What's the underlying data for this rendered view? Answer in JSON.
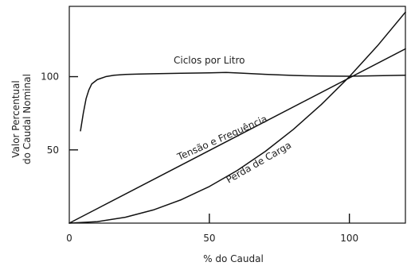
{
  "chart_data": {
    "type": "line",
    "xlabel": "% do Caudal",
    "ylabel_lines": [
      "Valor Percentual",
      "do Caudal Nominal"
    ],
    "xlim": [
      0,
      120
    ],
    "ylim": [
      0,
      148
    ],
    "x_ticks": [
      0,
      50,
      100
    ],
    "y_ticks": [
      50,
      100
    ],
    "x_tick_labels": [
      "0",
      "50",
      "100"
    ],
    "y_tick_labels": [
      "50",
      "100"
    ],
    "grid": false,
    "legend": "none",
    "series": [
      {
        "name": "Ciclos por Litro",
        "x": [
          4,
          5,
          6,
          7,
          8,
          10,
          13,
          16,
          20,
          25,
          30,
          40,
          50,
          56,
          60,
          70,
          80,
          90,
          100,
          110,
          120
        ],
        "y": [
          63,
          75,
          85,
          91,
          95,
          98,
          100,
          101,
          101.5,
          101.8,
          102,
          102.3,
          102.6,
          102.9,
          102.5,
          101.6,
          100.8,
          100.4,
          100.3,
          100.6,
          101
        ]
      },
      {
        "name": "Tensão e Frequência",
        "x": [
          0,
          120
        ],
        "y": [
          0,
          119
        ]
      },
      {
        "name": "Perda de Carga",
        "x": [
          0,
          10,
          20,
          30,
          40,
          50,
          60,
          70,
          80,
          90,
          100,
          110,
          120
        ],
        "y": [
          0,
          1,
          4,
          9,
          16,
          25,
          36,
          49,
          64,
          81,
          100,
          121,
          144
        ]
      }
    ]
  }
}
